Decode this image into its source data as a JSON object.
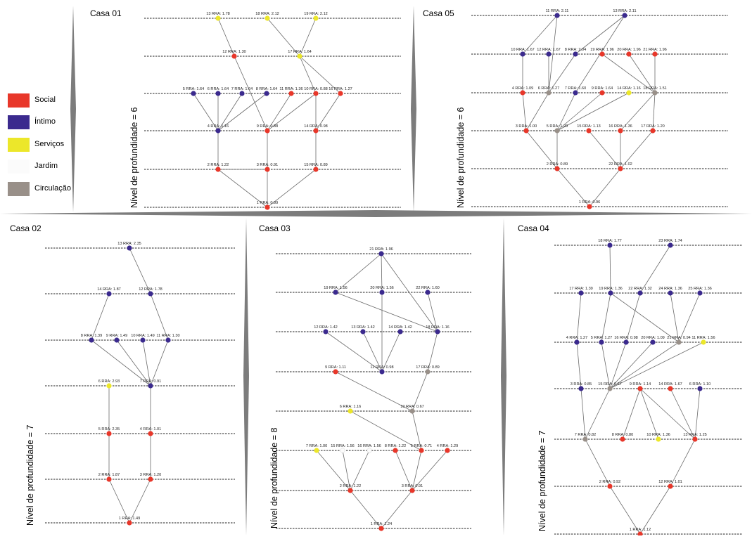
{
  "legend": [
    {
      "label": "Social",
      "color": "#e8372a"
    },
    {
      "label": "Íntimo",
      "color": "#3b2a8e"
    },
    {
      "label": "Serviços",
      "color": "#ece72a"
    },
    {
      "label": "Jardim",
      "color": "#fbfbfb"
    },
    {
      "label": "Circulação",
      "color": "#999089"
    }
  ],
  "depth_prefix": "Nível de profundidade = ",
  "houses": [
    {
      "id": "casa01",
      "title": "Casa 01",
      "depth": "6",
      "nodes": [
        {
          "n": "13",
          "label": "13 RRA: 1.78",
          "cat": "Serviços"
        },
        {
          "n": "18",
          "label": "18 RRA: 2.12",
          "cat": "Serviços"
        },
        {
          "n": "19",
          "label": "19 RRA: 2.12",
          "cat": "Serviços"
        },
        {
          "n": "12",
          "label": "12 RRA: 1.30",
          "cat": "Social"
        },
        {
          "n": "17",
          "label": "17 RRA: 1.64",
          "cat": "Serviços"
        },
        {
          "n": "5",
          "label": "5 RRA: 1.64",
          "cat": "Íntimo"
        },
        {
          "n": "6",
          "label": "6 RRA: 1.64",
          "cat": "Íntimo"
        },
        {
          "n": "7",
          "label": "7 RRA: 1.64",
          "cat": "Íntimo"
        },
        {
          "n": "8",
          "label": "8 RRA: 1.64",
          "cat": "Íntimo"
        },
        {
          "n": "11",
          "label": "11 RRA: 1.36",
          "cat": "Social"
        },
        {
          "n": "10",
          "label": "10 RRA: 0.88",
          "cat": "Social"
        },
        {
          "n": "16",
          "label": "16 RRA: 1.27",
          "cat": "Social"
        },
        {
          "n": "4",
          "label": "4 RRA: 1.16",
          "cat": "Íntimo"
        },
        {
          "n": "9",
          "label": "9 RRA: 0.88",
          "cat": "Social"
        },
        {
          "n": "14",
          "label": "14 RRA: 0.98",
          "cat": "Social"
        },
        {
          "n": "2",
          "label": "2 RRA: 1.22",
          "cat": "Social"
        },
        {
          "n": "3",
          "label": "3 RRA: 0.91",
          "cat": "Social"
        },
        {
          "n": "15",
          "label": "15 RRA: 0.89",
          "cat": "Social"
        },
        {
          "n": "1",
          "label": "1 RRA: 0.99",
          "cat": "Social"
        }
      ],
      "edges": [
        [
          "13",
          "12"
        ],
        [
          "18",
          "17"
        ],
        [
          "19",
          "17"
        ],
        [
          "12",
          "9"
        ],
        [
          "17",
          "10"
        ],
        [
          "17",
          "16"
        ],
        [
          "5",
          "4"
        ],
        [
          "6",
          "4"
        ],
        [
          "7",
          "4"
        ],
        [
          "8",
          "4"
        ],
        [
          "11",
          "9"
        ],
        [
          "10",
          "9"
        ],
        [
          "10",
          "14"
        ],
        [
          "16",
          "14"
        ],
        [
          "4",
          "2"
        ],
        [
          "9",
          "3"
        ],
        [
          "14",
          "15"
        ],
        [
          "2",
          "3"
        ],
        [
          "2",
          "1"
        ],
        [
          "3",
          "1"
        ],
        [
          "15",
          "1"
        ]
      ]
    },
    {
      "id": "casa05",
      "title": "Casa 05",
      "depth": "6",
      "nodes": [
        {
          "n": "11",
          "label": "11 RRA: 2.11",
          "cat": "Íntimo"
        },
        {
          "n": "13",
          "label": "13 RRA: 2.11",
          "cat": "Íntimo"
        },
        {
          "n": "10",
          "label": "10 RRA: 1.67",
          "cat": "Íntimo"
        },
        {
          "n": "12",
          "label": "12 RRA: 1.67",
          "cat": "Íntimo"
        },
        {
          "n": "8",
          "label": "8 RRA: 2.04",
          "cat": "Íntimo"
        },
        {
          "n": "19",
          "label": "19 RRA: 1.96",
          "cat": "Social"
        },
        {
          "n": "20",
          "label": "20 RRA: 1.96",
          "cat": "Social"
        },
        {
          "n": "21",
          "label": "21 RRA: 1.96",
          "cat": "Social"
        },
        {
          "n": "4",
          "label": "4 RRA: 1.09",
          "cat": "Social"
        },
        {
          "n": "6",
          "label": "6 RRA: 1.27",
          "cat": "Circulação"
        },
        {
          "n": "7",
          "label": "7 RRA: 1.60",
          "cat": "Íntimo"
        },
        {
          "n": "9",
          "label": "9 RRA: 1.64",
          "cat": "Social"
        },
        {
          "n": "14",
          "label": "14 RRA: 1.16",
          "cat": "Serviços"
        },
        {
          "n": "18",
          "label": "18 RRA: 1.51",
          "cat": "Circulação"
        },
        {
          "n": "3",
          "label": "3 RRA: 1.00",
          "cat": "Social"
        },
        {
          "n": "5",
          "label": "5 RRA: 1.20",
          "cat": "Circulação"
        },
        {
          "n": "15",
          "label": "15 RRA: 1.13",
          "cat": "Social"
        },
        {
          "n": "16",
          "label": "16 RRA: 1.36",
          "cat": "Social"
        },
        {
          "n": "17",
          "label": "17 RRA: 1.20",
          "cat": "Social"
        },
        {
          "n": "2",
          "label": "2 RRA: 0.89",
          "cat": "Social"
        },
        {
          "n": "22",
          "label": "22 RRA: 1.02",
          "cat": "Social"
        },
        {
          "n": "1",
          "label": "1 RRA: 0.96",
          "cat": "Social"
        }
      ],
      "edges": [
        [
          "11",
          "10"
        ],
        [
          "11",
          "6"
        ],
        [
          "13",
          "8"
        ],
        [
          "13",
          "7"
        ],
        [
          "10",
          "4"
        ],
        [
          "12",
          "6"
        ],
        [
          "8",
          "6"
        ],
        [
          "19",
          "18"
        ],
        [
          "20",
          "18"
        ],
        [
          "21",
          "18"
        ],
        [
          "4",
          "3"
        ],
        [
          "6",
          "3"
        ],
        [
          "7",
          "5"
        ],
        [
          "9",
          "5"
        ],
        [
          "14",
          "5"
        ],
        [
          "18",
          "16"
        ],
        [
          "18",
          "17"
        ],
        [
          "3",
          "2"
        ],
        [
          "5",
          "2"
        ],
        [
          "15",
          "22"
        ],
        [
          "16",
          "22"
        ],
        [
          "17",
          "22"
        ],
        [
          "2",
          "1"
        ],
        [
          "22",
          "1"
        ]
      ]
    },
    {
      "id": "casa02",
      "title": "Casa 02",
      "depth": "7",
      "nodes": [
        {
          "n": "13",
          "label": "13 RRA: 2.35",
          "cat": "Íntimo"
        },
        {
          "n": "14",
          "label": "14 RRA: 1.87",
          "cat": "Íntimo"
        },
        {
          "n": "12",
          "label": "12 RRA: 1.78",
          "cat": "Íntimo"
        },
        {
          "n": "8",
          "label": "8 RRA: 1.39",
          "cat": "Íntimo"
        },
        {
          "n": "9",
          "label": "9 RRA: 1.49",
          "cat": "Íntimo"
        },
        {
          "n": "10",
          "label": "10 RRA: 1.49",
          "cat": "Íntimo"
        },
        {
          "n": "11",
          "label": "11 RRA: 1.30",
          "cat": "Íntimo"
        },
        {
          "n": "6",
          "label": "6 RRA: 2.93",
          "cat": "Serviços"
        },
        {
          "n": "7",
          "label": "7 RRA: 0.91",
          "cat": "Íntimo"
        },
        {
          "n": "5",
          "label": "5 RRA: 2.35",
          "cat": "Social"
        },
        {
          "n": "4",
          "label": "4 RRA: 1.01",
          "cat": "Social"
        },
        {
          "n": "2",
          "label": "2 RRA: 1.87",
          "cat": "Social"
        },
        {
          "n": "3",
          "label": "3 RRA: 1.20",
          "cat": "Social"
        },
        {
          "n": "1",
          "label": "1 RRA: 1.49",
          "cat": "Social"
        }
      ],
      "edges": [
        [
          "13",
          "12"
        ],
        [
          "14",
          "8"
        ],
        [
          "12",
          "11"
        ],
        [
          "8",
          "7"
        ],
        [
          "9",
          "7"
        ],
        [
          "10",
          "7"
        ],
        [
          "11",
          "7"
        ],
        [
          "6",
          "5"
        ],
        [
          "7",
          "4"
        ],
        [
          "5",
          "2"
        ],
        [
          "4",
          "3"
        ],
        [
          "2",
          "1"
        ],
        [
          "3",
          "1"
        ]
      ]
    },
    {
      "id": "casa03",
      "title": "Casa 03",
      "depth": "8",
      "nodes": [
        {
          "n": "21",
          "label": "21 RRA: 1.96",
          "cat": "Íntimo"
        },
        {
          "n": "19",
          "label": "19 RRA: 1.56",
          "cat": "Íntimo"
        },
        {
          "n": "20",
          "label": "20 RRA: 1.56",
          "cat": "Íntimo"
        },
        {
          "n": "22",
          "label": "22 RRA: 1.60",
          "cat": "Íntimo"
        },
        {
          "n": "12",
          "label": "12 RRA: 1.42",
          "cat": "Íntimo"
        },
        {
          "n": "13",
          "label": "13 RRA: 1.42",
          "cat": "Íntimo"
        },
        {
          "n": "14",
          "label": "14 RRA: 1.42",
          "cat": "Íntimo"
        },
        {
          "n": "18",
          "label": "18 RRA: 1.16",
          "cat": "Íntimo"
        },
        {
          "n": "9",
          "label": "9 RRA: 1.11",
          "cat": "Social"
        },
        {
          "n": "11",
          "label": "11 RRA: 0.98",
          "cat": "Íntimo"
        },
        {
          "n": "17",
          "label": "17 RRA: 0.89",
          "cat": "Circulação"
        },
        {
          "n": "6",
          "label": "6 RRA: 1.16",
          "cat": "Serviços"
        },
        {
          "n": "10",
          "label": "10 RRA: 0.67",
          "cat": "Circulação"
        },
        {
          "n": "7",
          "label": "7 RRA: 1.00",
          "cat": "Serviços"
        },
        {
          "n": "15",
          "label": "15 RRA: 1.56",
          "cat": "Jardim"
        },
        {
          "n": "16",
          "label": "16 RRA: 1.56",
          "cat": "Jardim"
        },
        {
          "n": "8",
          "label": "8 RRA: 1.22",
          "cat": "Social"
        },
        {
          "n": "5",
          "label": "5 RRA: 0.71",
          "cat": "Social"
        },
        {
          "n": "4",
          "label": "4 RRA: 1.29",
          "cat": "Social"
        },
        {
          "n": "2",
          "label": "2 RRA: 1.22",
          "cat": "Social"
        },
        {
          "n": "3",
          "label": "3 RRA: 0.91",
          "cat": "Social"
        },
        {
          "n": "1",
          "label": "1 RRA: 1.24",
          "cat": "Social"
        }
      ],
      "edges": [
        [
          "21",
          "19"
        ],
        [
          "21",
          "20"
        ],
        [
          "21",
          "18"
        ],
        [
          "19",
          "18"
        ],
        [
          "22",
          "18"
        ],
        [
          "12",
          "11"
        ],
        [
          "13",
          "11"
        ],
        [
          "14",
          "11"
        ],
        [
          "20",
          "11"
        ],
        [
          "18",
          "17"
        ],
        [
          "9",
          "10"
        ],
        [
          "17",
          "10"
        ],
        [
          "6",
          "5"
        ],
        [
          "10",
          "5"
        ],
        [
          "7",
          "2"
        ],
        [
          "15",
          "2"
        ],
        [
          "16",
          "2"
        ],
        [
          "8",
          "3"
        ],
        [
          "5",
          "3"
        ],
        [
          "4",
          "3"
        ],
        [
          "2",
          "1"
        ],
        [
          "3",
          "1"
        ]
      ]
    },
    {
      "id": "casa04",
      "title": "Casa 04",
      "depth": "7",
      "nodes": [
        {
          "n": "18",
          "label": "18 RRA: 1.77",
          "cat": "Íntimo"
        },
        {
          "n": "23",
          "label": "23 RRA: 1.74",
          "cat": "Íntimo"
        },
        {
          "n": "17",
          "label": "17 RRA: 1.39",
          "cat": "Íntimo"
        },
        {
          "n": "19",
          "label": "19 RRA: 1.36",
          "cat": "Íntimo"
        },
        {
          "n": "22",
          "label": "22 RRA: 1.32",
          "cat": "Íntimo"
        },
        {
          "n": "24",
          "label": "24 RRA: 1.36",
          "cat": "Íntimo"
        },
        {
          "n": "25",
          "label": "25 RRA: 1.36",
          "cat": "Íntimo"
        },
        {
          "n": "4",
          "label": "4 RRA: 1.27",
          "cat": "Íntimo"
        },
        {
          "n": "5",
          "label": "5 RRA: 1.27",
          "cat": "Íntimo"
        },
        {
          "n": "16",
          "label": "16 RRA: 0.98",
          "cat": "Íntimo"
        },
        {
          "n": "20",
          "label": "20 RRA: 1.09",
          "cat": "Íntimo"
        },
        {
          "n": "21",
          "label": "21 RRA: 0.94",
          "cat": "Circulação"
        },
        {
          "n": "11",
          "label": "11 RRA: 1.56",
          "cat": "Serviços"
        },
        {
          "n": "3",
          "label": "3 RRA: 0.85",
          "cat": "Íntimo"
        },
        {
          "n": "15",
          "label": "15 RRA: 0.67",
          "cat": "Circulação"
        },
        {
          "n": "9",
          "label": "9 RRA: 1.14",
          "cat": "Social"
        },
        {
          "n": "14",
          "label": "14 RRA: 1.67",
          "cat": "Social"
        },
        {
          "n": "6",
          "label": "6 RRA: 1.10",
          "cat": "Íntimo"
        },
        {
          "n": "7",
          "label": "7 RRA: 0.82",
          "cat": "Circulação"
        },
        {
          "n": "8",
          "label": "8 RRA: 0.80",
          "cat": "Social"
        },
        {
          "n": "10",
          "label": "10 RRA: 1.36",
          "cat": "Serviços"
        },
        {
          "n": "13",
          "label": "13 RRA: 1.25",
          "cat": "Social"
        },
        {
          "n": "2",
          "label": "2 RRA: 0.92",
          "cat": "Social"
        },
        {
          "n": "12",
          "label": "12 RRA: 1.01",
          "cat": "Social"
        },
        {
          "n": "1",
          "label": "1 RRA: 1.12",
          "cat": "Social"
        }
      ],
      "edges": [
        [
          "18",
          "19"
        ],
        [
          "23",
          "22"
        ],
        [
          "17",
          "4"
        ],
        [
          "19",
          "5"
        ],
        [
          "19",
          "21"
        ],
        [
          "22",
          "16"
        ],
        [
          "24",
          "21"
        ],
        [
          "25",
          "21"
        ],
        [
          "4",
          "3"
        ],
        [
          "5",
          "15"
        ],
        [
          "16",
          "15"
        ],
        [
          "20",
          "15"
        ],
        [
          "21",
          "15"
        ],
        [
          "11",
          "15"
        ],
        [
          "3",
          "7"
        ],
        [
          "15",
          "7"
        ],
        [
          "9",
          "8"
        ],
        [
          "9",
          "10"
        ],
        [
          "9",
          "13"
        ],
        [
          "14",
          "13"
        ],
        [
          "6",
          "13"
        ],
        [
          "7",
          "2"
        ],
        [
          "13",
          "12"
        ],
        [
          "2",
          "1"
        ],
        [
          "12",
          "1"
        ]
      ]
    }
  ]
}
